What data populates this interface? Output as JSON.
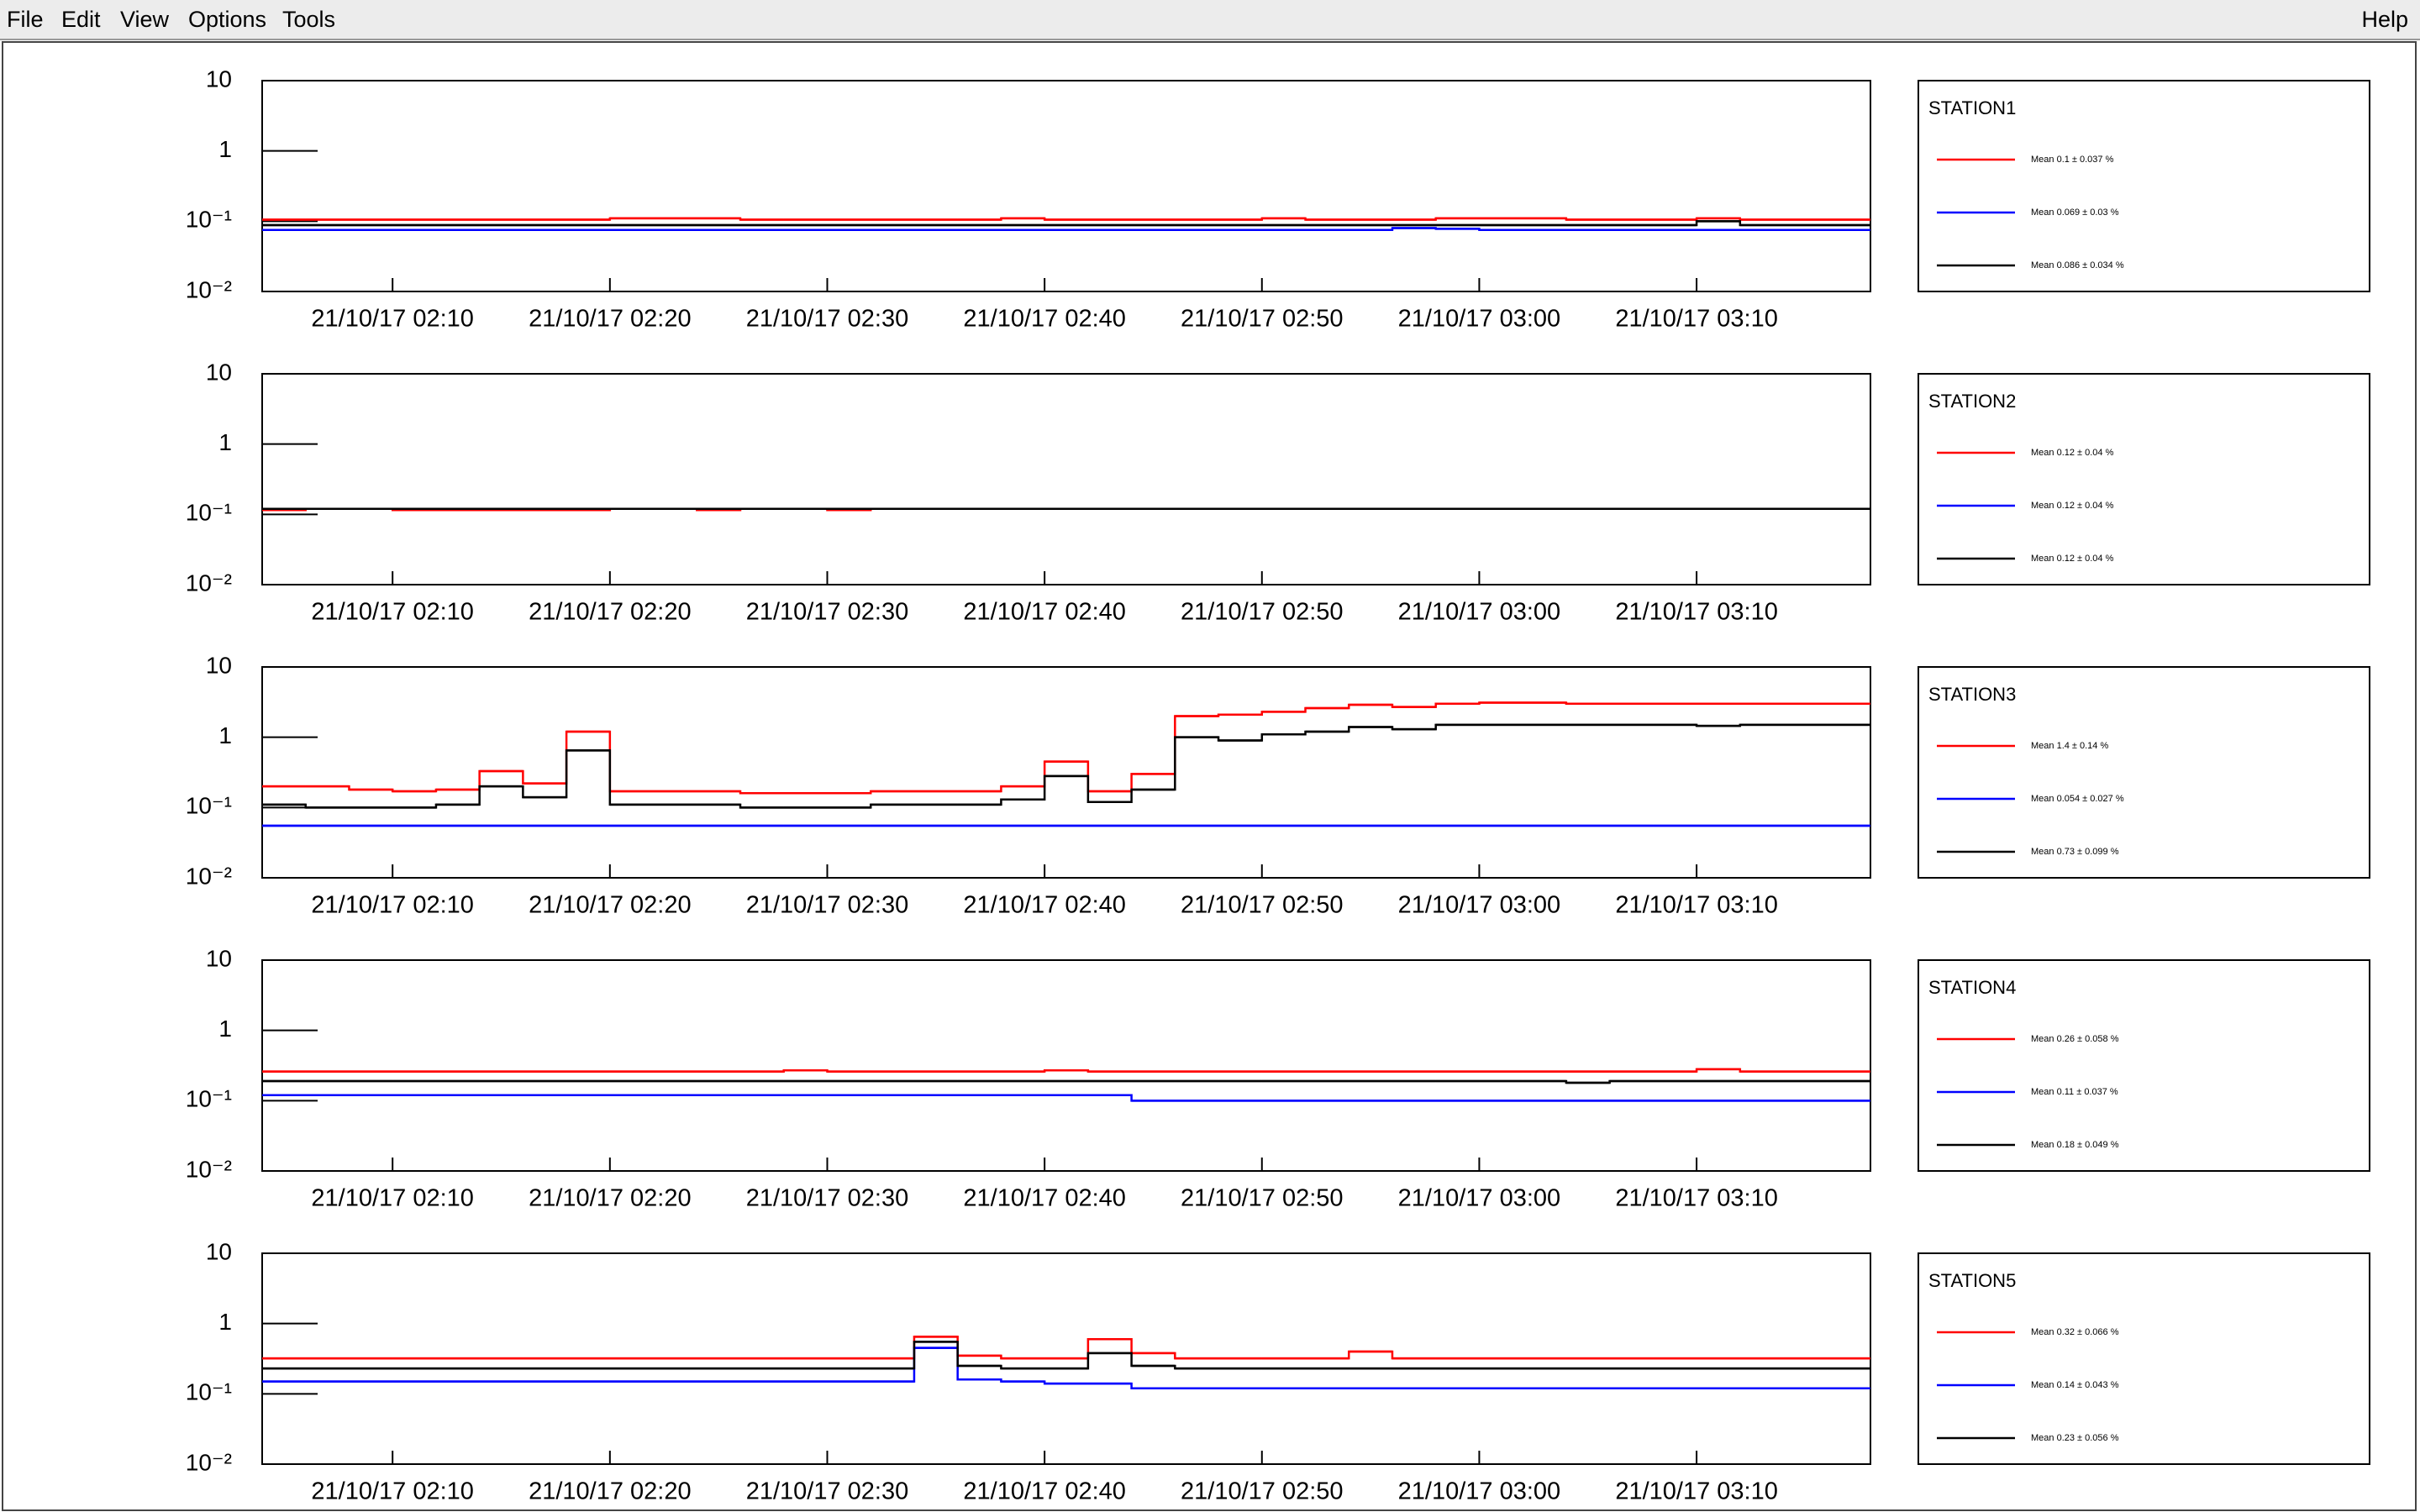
{
  "menu": [
    "File",
    "Edit",
    "View",
    "Options",
    "Tools"
  ],
  "help": "Help",
  "chart_data": [
    {
      "type": "histogram",
      "log_y": true,
      "legend_title": "STATION1",
      "bins": [
        124,
        126,
        128,
        130,
        132,
        134,
        136,
        138,
        140,
        142,
        144,
        146,
        148,
        150,
        152,
        154,
        156,
        158,
        160,
        162,
        164,
        166,
        168,
        170,
        172,
        174,
        176,
        178,
        180,
        182,
        184,
        186,
        188,
        190,
        192,
        194,
        196,
        198
      ],
      "xlim": [
        124,
        198
      ],
      "xticks": [
        {
          "value": 130,
          "label": "21/10/17 02:10"
        },
        {
          "value": 140,
          "label": "21/10/17 02:20"
        },
        {
          "value": 150,
          "label": "21/10/17 02:30"
        },
        {
          "value": 160,
          "label": "21/10/17 02:40"
        },
        {
          "value": 170,
          "label": "21/10/17 02:50"
        },
        {
          "value": 180,
          "label": "21/10/17 03:00"
        },
        {
          "value": 190,
          "label": "21/10/17 03:10"
        }
      ],
      "ylim": [
        0.01,
        10
      ],
      "yticks": [
        {
          "value": 0.01,
          "label": "10⁻²"
        },
        {
          "value": 0.1,
          "label": "10⁻¹"
        },
        1,
        10
      ],
      "series": [
        {
          "name": "Mean  0.1 ± 0.037 %",
          "color": "#ff0000",
          "values": [
            0.105,
            0.105,
            0.105,
            0.105,
            0.105,
            0.105,
            0.105,
            0.105,
            0.11,
            0.11,
            0.11,
            0.105,
            0.105,
            0.105,
            0.105,
            0.105,
            0.105,
            0.11,
            0.105,
            0.105,
            0.105,
            0.105,
            0.105,
            0.11,
            0.105,
            0.105,
            0.105,
            0.11,
            0.11,
            0.11,
            0.105,
            0.105,
            0.105,
            0.11,
            0.105,
            0.105,
            0.105
          ]
        },
        {
          "name": "Mean 0.069 ± 0.03 %",
          "color": "#0000ff",
          "values": [
            0.075,
            0.075,
            0.075,
            0.075,
            0.075,
            0.075,
            0.075,
            0.075,
            0.075,
            0.075,
            0.075,
            0.075,
            0.075,
            0.075,
            0.075,
            0.075,
            0.075,
            0.075,
            0.075,
            0.075,
            0.075,
            0.075,
            0.075,
            0.075,
            0.075,
            0.075,
            0.08,
            0.078,
            0.075,
            0.075,
            0.075,
            0.075,
            0.075,
            0.075,
            0.075,
            0.075,
            0.075
          ]
        },
        {
          "name": "Mean 0.086 ± 0.034 %",
          "color": "#000000",
          "values": [
            0.088,
            0.088,
            0.088,
            0.088,
            0.088,
            0.088,
            0.088,
            0.088,
            0.088,
            0.088,
            0.088,
            0.088,
            0.088,
            0.088,
            0.088,
            0.088,
            0.088,
            0.088,
            0.088,
            0.088,
            0.088,
            0.088,
            0.088,
            0.088,
            0.088,
            0.088,
            0.088,
            0.088,
            0.088,
            0.088,
            0.088,
            0.088,
            0.088,
            0.1,
            0.088,
            0.088,
            0.088
          ]
        }
      ]
    },
    {
      "type": "histogram",
      "log_y": true,
      "legend_title": "STATION2",
      "bins": [
        124,
        126,
        128,
        130,
        132,
        134,
        136,
        138,
        140,
        142,
        144,
        146,
        148,
        150,
        152,
        154,
        156,
        158,
        160,
        162,
        164,
        166,
        168,
        170,
        172,
        174,
        176,
        178,
        180,
        182,
        184,
        186,
        188,
        190,
        192,
        194,
        196,
        198
      ],
      "xlim": [
        124,
        198
      ],
      "xticks": [
        {
          "value": 130,
          "label": "21/10/17 02:10"
        },
        {
          "value": 140,
          "label": "21/10/17 02:20"
        },
        {
          "value": 150,
          "label": "21/10/17 02:30"
        },
        {
          "value": 160,
          "label": "21/10/17 02:40"
        },
        {
          "value": 170,
          "label": "21/10/17 02:50"
        },
        {
          "value": 180,
          "label": "21/10/17 03:00"
        },
        {
          "value": 190,
          "label": "21/10/17 03:10"
        }
      ],
      "ylim": [
        0.01,
        10
      ],
      "yticks": [
        {
          "value": 0.01,
          "label": "10⁻²"
        },
        {
          "value": 0.1,
          "label": "10⁻¹"
        },
        1,
        10
      ],
      "series": [
        {
          "name": "Mean  0.12 ± 0.04 %",
          "color": "#ff0000",
          "values": [
            0.115,
            0.12,
            0.12,
            0.115,
            0.115,
            0.115,
            0.115,
            0.115,
            0.12,
            0.12,
            0.115,
            0.12,
            0.12,
            0.115,
            0.12,
            0.12,
            0.12,
            0.12,
            0.12,
            0.12,
            0.12,
            0.12,
            0.12,
            0.12,
            0.12,
            0.12,
            0.12,
            0.12,
            0.12,
            0.12,
            0.12,
            0.12,
            0.12,
            0.12,
            0.12,
            0.12,
            0.12
          ]
        },
        {
          "name": "Mean  0.12 ± 0.04 %",
          "color": "#0000ff",
          "values": [
            0.12,
            0.12,
            0.12,
            0.12,
            0.12,
            0.12,
            0.12,
            0.12,
            0.12,
            0.12,
            0.12,
            0.12,
            0.12,
            0.12,
            0.12,
            0.12,
            0.12,
            0.12,
            0.12,
            0.12,
            0.12,
            0.12,
            0.12,
            0.12,
            0.12,
            0.12,
            0.12,
            0.12,
            0.12,
            0.12,
            0.12,
            0.12,
            0.12,
            0.12,
            0.12,
            0.12,
            0.12
          ]
        },
        {
          "name": "Mean  0.12 ± 0.04 %",
          "color": "#000000",
          "values": [
            0.12,
            0.12,
            0.12,
            0.12,
            0.12,
            0.12,
            0.12,
            0.12,
            0.12,
            0.12,
            0.12,
            0.12,
            0.12,
            0.12,
            0.12,
            0.12,
            0.12,
            0.12,
            0.12,
            0.12,
            0.12,
            0.12,
            0.12,
            0.12,
            0.12,
            0.12,
            0.12,
            0.12,
            0.12,
            0.12,
            0.12,
            0.12,
            0.12,
            0.12,
            0.12,
            0.12,
            0.12
          ]
        }
      ]
    },
    {
      "type": "histogram",
      "log_y": true,
      "legend_title": "STATION3",
      "bins": [
        124,
        126,
        128,
        130,
        132,
        134,
        136,
        138,
        140,
        142,
        144,
        146,
        148,
        150,
        152,
        154,
        156,
        158,
        160,
        162,
        164,
        166,
        168,
        170,
        172,
        174,
        176,
        178,
        180,
        182,
        184,
        186,
        188,
        190,
        192,
        194,
        196,
        198
      ],
      "xlim": [
        124,
        198
      ],
      "xticks": [
        {
          "value": 130,
          "label": "21/10/17 02:10"
        },
        {
          "value": 140,
          "label": "21/10/17 02:20"
        },
        {
          "value": 150,
          "label": "21/10/17 02:30"
        },
        {
          "value": 160,
          "label": "21/10/17 02:40"
        },
        {
          "value": 170,
          "label": "21/10/17 02:50"
        },
        {
          "value": 180,
          "label": "21/10/17 03:00"
        },
        {
          "value": 190,
          "label": "21/10/17 03:10"
        }
      ],
      "ylim": [
        0.01,
        10
      ],
      "yticks": [
        {
          "value": 0.01,
          "label": "10⁻²"
        },
        {
          "value": 0.1,
          "label": "10⁻¹"
        },
        1,
        10
      ],
      "series": [
        {
          "name": "Mean  1.4 ± 0.14 %",
          "color": "#ff0000",
          "values": [
            0.2,
            0.2,
            0.18,
            0.17,
            0.18,
            0.33,
            0.22,
            1.2,
            0.17,
            0.17,
            0.17,
            0.16,
            0.16,
            0.16,
            0.17,
            0.17,
            0.17,
            0.2,
            0.45,
            0.17,
            0.3,
            2.0,
            2.1,
            2.3,
            2.6,
            2.9,
            2.7,
            3.0,
            3.1,
            3.1,
            3.0,
            3.0,
            3.0,
            3.0,
            3.0,
            3.0,
            3.0
          ]
        },
        {
          "name": "Mean 0.054 ± 0.027 %",
          "color": "#0000ff",
          "values": [
            0.055,
            0.055,
            0.055,
            0.055,
            0.055,
            0.055,
            0.055,
            0.055,
            0.055,
            0.055,
            0.055,
            0.055,
            0.055,
            0.055,
            0.055,
            0.055,
            0.055,
            0.055,
            0.055,
            0.055,
            0.055,
            0.055,
            0.055,
            0.055,
            0.055,
            0.055,
            0.055,
            0.055,
            0.055,
            0.055,
            0.055,
            0.055,
            0.055,
            0.055,
            0.055,
            0.055,
            0.055
          ]
        },
        {
          "name": "Mean  0.73 ± 0.099 %",
          "color": "#000000",
          "values": [
            0.11,
            0.1,
            0.1,
            0.1,
            0.11,
            0.2,
            0.14,
            0.65,
            0.11,
            0.11,
            0.11,
            0.1,
            0.1,
            0.1,
            0.11,
            0.11,
            0.11,
            0.13,
            0.28,
            0.12,
            0.18,
            1.0,
            0.9,
            1.1,
            1.2,
            1.4,
            1.3,
            1.5,
            1.5,
            1.5,
            1.5,
            1.5,
            1.5,
            1.45,
            1.5,
            1.5,
            1.5
          ]
        }
      ]
    },
    {
      "type": "histogram",
      "log_y": true,
      "legend_title": "STATION4",
      "bins": [
        124,
        126,
        128,
        130,
        132,
        134,
        136,
        138,
        140,
        142,
        144,
        146,
        148,
        150,
        152,
        154,
        156,
        158,
        160,
        162,
        164,
        166,
        168,
        170,
        172,
        174,
        176,
        178,
        180,
        182,
        184,
        186,
        188,
        190,
        192,
        194,
        196,
        198
      ],
      "xlim": [
        124,
        198
      ],
      "xticks": [
        {
          "value": 130,
          "label": "21/10/17 02:10"
        },
        {
          "value": 140,
          "label": "21/10/17 02:20"
        },
        {
          "value": 150,
          "label": "21/10/17 02:30"
        },
        {
          "value": 160,
          "label": "21/10/17 02:40"
        },
        {
          "value": 170,
          "label": "21/10/17 02:50"
        },
        {
          "value": 180,
          "label": "21/10/17 03:00"
        },
        {
          "value": 190,
          "label": "21/10/17 03:10"
        }
      ],
      "ylim": [
        0.01,
        10
      ],
      "yticks": [
        {
          "value": 0.01,
          "label": "10⁻²"
        },
        {
          "value": 0.1,
          "label": "10⁻¹"
        },
        1,
        10
      ],
      "series": [
        {
          "name": "Mean 0.26 ± 0.058 %",
          "color": "#ff0000",
          "values": [
            0.26,
            0.26,
            0.26,
            0.26,
            0.26,
            0.26,
            0.26,
            0.26,
            0.26,
            0.26,
            0.26,
            0.26,
            0.27,
            0.26,
            0.26,
            0.26,
            0.26,
            0.26,
            0.27,
            0.26,
            0.26,
            0.26,
            0.26,
            0.26,
            0.26,
            0.26,
            0.26,
            0.26,
            0.26,
            0.26,
            0.26,
            0.26,
            0.26,
            0.28,
            0.26,
            0.26,
            0.26
          ]
        },
        {
          "name": "Mean  0.11 ± 0.037 %",
          "color": "#0000ff",
          "values": [
            0.12,
            0.12,
            0.12,
            0.12,
            0.12,
            0.12,
            0.12,
            0.12,
            0.12,
            0.12,
            0.12,
            0.12,
            0.12,
            0.12,
            0.12,
            0.12,
            0.12,
            0.12,
            0.12,
            0.12,
            0.1,
            0.1,
            0.1,
            0.1,
            0.1,
            0.1,
            0.1,
            0.1,
            0.1,
            0.1,
            0.1,
            0.1,
            0.1,
            0.1,
            0.1,
            0.1,
            0.1
          ]
        },
        {
          "name": "Mean  0.18 ± 0.049 %",
          "color": "#000000",
          "values": [
            0.19,
            0.19,
            0.19,
            0.19,
            0.19,
            0.19,
            0.19,
            0.19,
            0.19,
            0.19,
            0.19,
            0.19,
            0.19,
            0.19,
            0.19,
            0.19,
            0.19,
            0.19,
            0.19,
            0.19,
            0.19,
            0.19,
            0.19,
            0.19,
            0.19,
            0.19,
            0.19,
            0.19,
            0.19,
            0.19,
            0.18,
            0.19,
            0.19,
            0.19,
            0.19,
            0.19,
            0.19
          ]
        }
      ]
    },
    {
      "type": "histogram",
      "log_y": true,
      "legend_title": "STATION5",
      "bins": [
        124,
        126,
        128,
        130,
        132,
        134,
        136,
        138,
        140,
        142,
        144,
        146,
        148,
        150,
        152,
        154,
        156,
        158,
        160,
        162,
        164,
        166,
        168,
        170,
        172,
        174,
        176,
        178,
        180,
        182,
        184,
        186,
        188,
        190,
        192,
        194,
        196,
        198
      ],
      "xlim": [
        124,
        198
      ],
      "xticks": [
        {
          "value": 130,
          "label": "21/10/17 02:10"
        },
        {
          "value": 140,
          "label": "21/10/17 02:20"
        },
        {
          "value": 150,
          "label": "21/10/17 02:30"
        },
        {
          "value": 160,
          "label": "21/10/17 02:40"
        },
        {
          "value": 170,
          "label": "21/10/17 02:50"
        },
        {
          "value": 180,
          "label": "21/10/17 03:00"
        },
        {
          "value": 190,
          "label": "21/10/17 03:10"
        }
      ],
      "ylim": [
        0.01,
        10
      ],
      "yticks": [
        {
          "value": 0.01,
          "label": "10⁻²"
        },
        {
          "value": 0.1,
          "label": "10⁻¹"
        },
        1,
        10
      ],
      "series": [
        {
          "name": "Mean 0.32 ± 0.066 %",
          "color": "#ff0000",
          "values": [
            0.32,
            0.32,
            0.32,
            0.32,
            0.32,
            0.32,
            0.32,
            0.32,
            0.32,
            0.32,
            0.32,
            0.32,
            0.32,
            0.32,
            0.32,
            0.65,
            0.35,
            0.32,
            0.32,
            0.6,
            0.38,
            0.32,
            0.32,
            0.32,
            0.32,
            0.4,
            0.32,
            0.32,
            0.32,
            0.32,
            0.32,
            0.32,
            0.32,
            0.32,
            0.32,
            0.32,
            0.32
          ]
        },
        {
          "name": "Mean 0.14 ± 0.043 %",
          "color": "#0000ff",
          "values": [
            0.15,
            0.15,
            0.15,
            0.15,
            0.15,
            0.15,
            0.15,
            0.15,
            0.15,
            0.15,
            0.15,
            0.15,
            0.15,
            0.15,
            0.15,
            0.45,
            0.16,
            0.15,
            0.14,
            0.14,
            0.12,
            0.12,
            0.12,
            0.12,
            0.12,
            0.12,
            0.12,
            0.12,
            0.12,
            0.12,
            0.12,
            0.12,
            0.12,
            0.12,
            0.12,
            0.12,
            0.12
          ]
        },
        {
          "name": "Mean 0.23 ± 0.056 %",
          "color": "#000000",
          "values": [
            0.23,
            0.23,
            0.23,
            0.23,
            0.23,
            0.23,
            0.23,
            0.23,
            0.23,
            0.23,
            0.23,
            0.23,
            0.23,
            0.23,
            0.23,
            0.55,
            0.25,
            0.23,
            0.23,
            0.38,
            0.25,
            0.23,
            0.23,
            0.23,
            0.23,
            0.23,
            0.23,
            0.23,
            0.23,
            0.23,
            0.23,
            0.23,
            0.23,
            0.23,
            0.23,
            0.23,
            0.23
          ]
        }
      ]
    }
  ]
}
